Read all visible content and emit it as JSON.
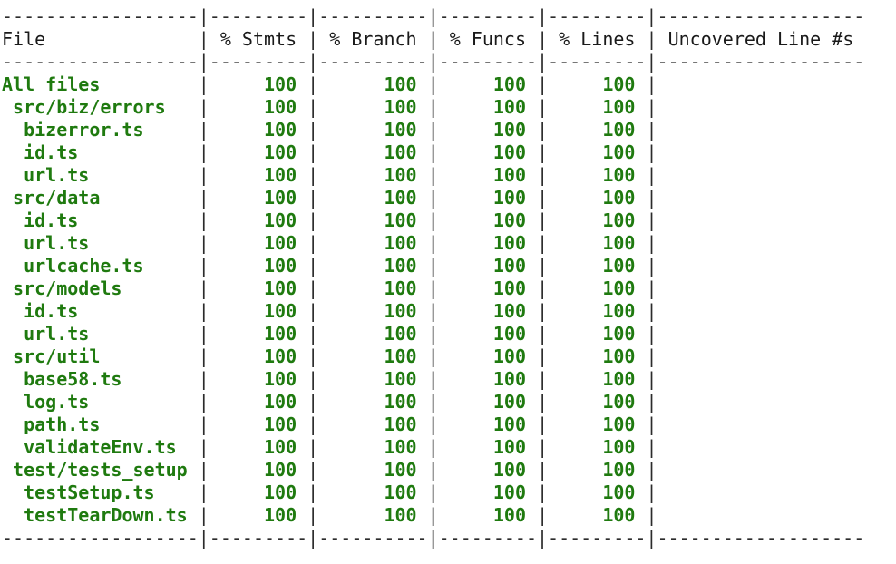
{
  "colors": {
    "covered": "#1f7a0f",
    "text": "#1a1a1a",
    "background": "#ffffff"
  },
  "table": {
    "columns": [
      "File",
      "% Stmts",
      "% Branch",
      "% Funcs",
      "% Lines",
      "Uncovered Line #s"
    ],
    "rows": [
      {
        "indent": 0,
        "file": "All files",
        "stmts": "100",
        "branch": "100",
        "funcs": "100",
        "lines": "100",
        "uncovered": ""
      },
      {
        "indent": 1,
        "file": "src/biz/errors",
        "stmts": "100",
        "branch": "100",
        "funcs": "100",
        "lines": "100",
        "uncovered": ""
      },
      {
        "indent": 2,
        "file": "bizerror.ts",
        "stmts": "100",
        "branch": "100",
        "funcs": "100",
        "lines": "100",
        "uncovered": ""
      },
      {
        "indent": 2,
        "file": "id.ts",
        "stmts": "100",
        "branch": "100",
        "funcs": "100",
        "lines": "100",
        "uncovered": ""
      },
      {
        "indent": 2,
        "file": "url.ts",
        "stmts": "100",
        "branch": "100",
        "funcs": "100",
        "lines": "100",
        "uncovered": ""
      },
      {
        "indent": 1,
        "file": "src/data",
        "stmts": "100",
        "branch": "100",
        "funcs": "100",
        "lines": "100",
        "uncovered": ""
      },
      {
        "indent": 2,
        "file": "id.ts",
        "stmts": "100",
        "branch": "100",
        "funcs": "100",
        "lines": "100",
        "uncovered": ""
      },
      {
        "indent": 2,
        "file": "url.ts",
        "stmts": "100",
        "branch": "100",
        "funcs": "100",
        "lines": "100",
        "uncovered": ""
      },
      {
        "indent": 2,
        "file": "urlcache.ts",
        "stmts": "100",
        "branch": "100",
        "funcs": "100",
        "lines": "100",
        "uncovered": ""
      },
      {
        "indent": 1,
        "file": "src/models",
        "stmts": "100",
        "branch": "100",
        "funcs": "100",
        "lines": "100",
        "uncovered": ""
      },
      {
        "indent": 2,
        "file": "id.ts",
        "stmts": "100",
        "branch": "100",
        "funcs": "100",
        "lines": "100",
        "uncovered": ""
      },
      {
        "indent": 2,
        "file": "url.ts",
        "stmts": "100",
        "branch": "100",
        "funcs": "100",
        "lines": "100",
        "uncovered": ""
      },
      {
        "indent": 1,
        "file": "src/util",
        "stmts": "100",
        "branch": "100",
        "funcs": "100",
        "lines": "100",
        "uncovered": ""
      },
      {
        "indent": 2,
        "file": "base58.ts",
        "stmts": "100",
        "branch": "100",
        "funcs": "100",
        "lines": "100",
        "uncovered": ""
      },
      {
        "indent": 2,
        "file": "log.ts",
        "stmts": "100",
        "branch": "100",
        "funcs": "100",
        "lines": "100",
        "uncovered": ""
      },
      {
        "indent": 2,
        "file": "path.ts",
        "stmts": "100",
        "branch": "100",
        "funcs": "100",
        "lines": "100",
        "uncovered": ""
      },
      {
        "indent": 2,
        "file": "validateEnv.ts",
        "stmts": "100",
        "branch": "100",
        "funcs": "100",
        "lines": "100",
        "uncovered": ""
      },
      {
        "indent": 1,
        "file": "test/tests_setup",
        "stmts": "100",
        "branch": "100",
        "funcs": "100",
        "lines": "100",
        "uncovered": ""
      },
      {
        "indent": 2,
        "file": "testSetup.ts",
        "stmts": "100",
        "branch": "100",
        "funcs": "100",
        "lines": "100",
        "uncovered": ""
      },
      {
        "indent": 2,
        "file": "testTearDown.ts",
        "stmts": "100",
        "branch": "100",
        "funcs": "100",
        "lines": "100",
        "uncovered": ""
      }
    ]
  }
}
